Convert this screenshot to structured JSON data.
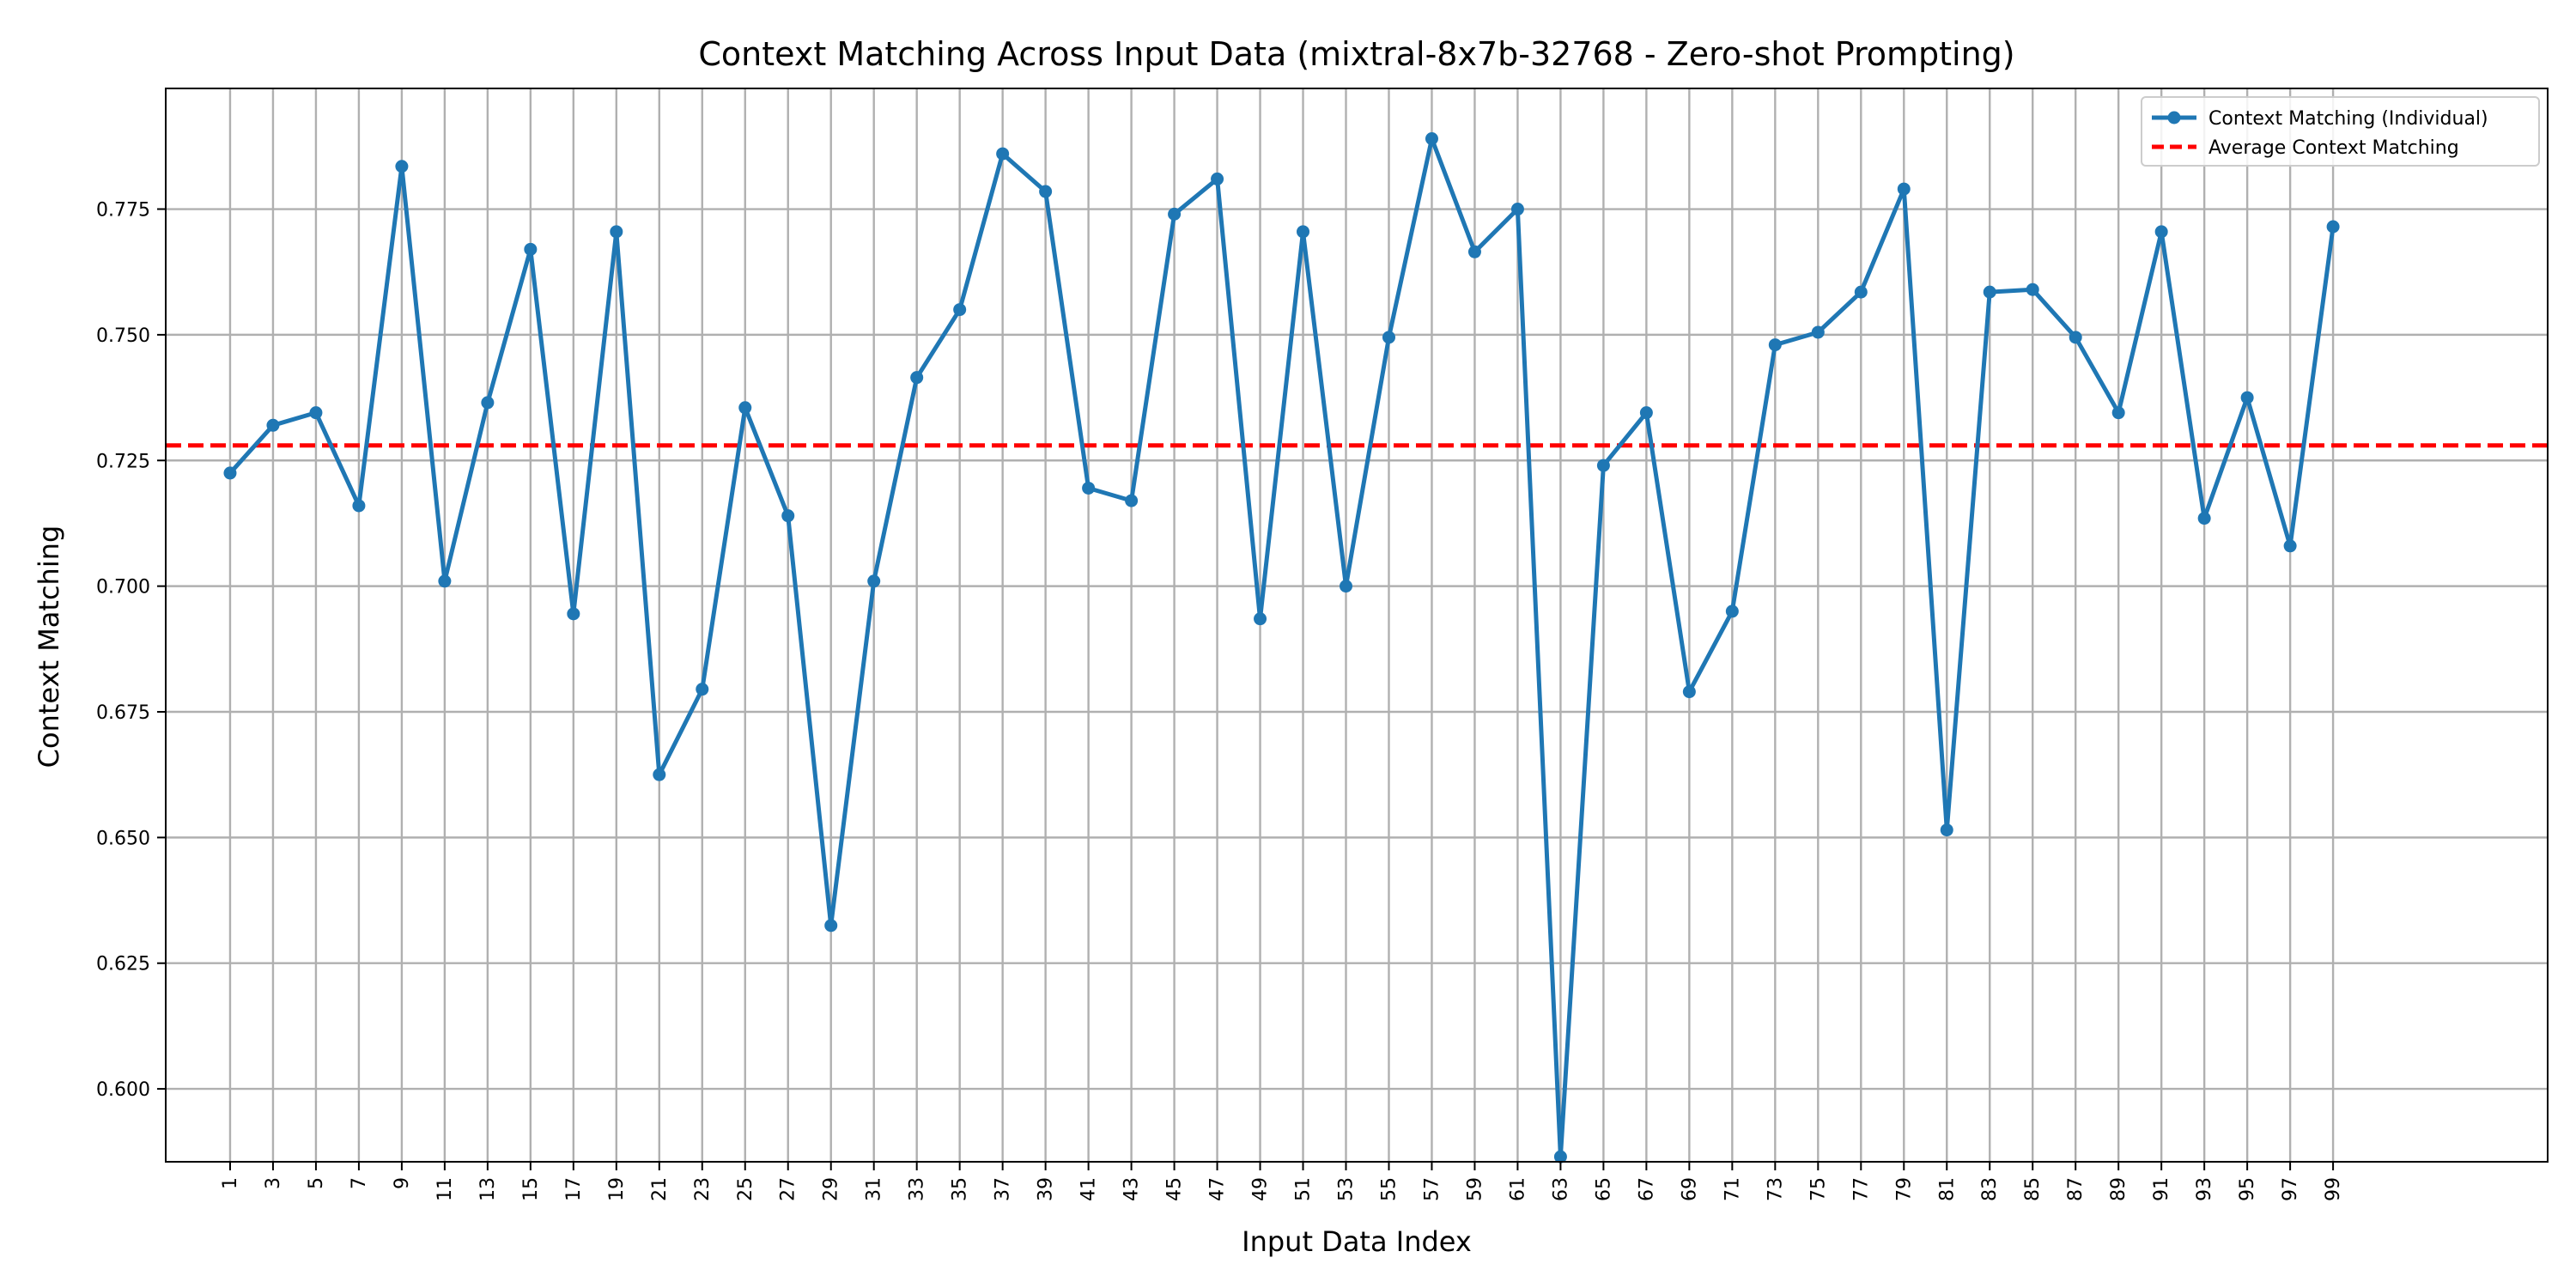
{
  "chart_data": {
    "type": "line",
    "title": "Context Matching Across Input Data (mixtral-8x7b-32768 - Zero-shot Prompting)",
    "xlabel": "Input Data Index",
    "ylabel": "Context Matching",
    "xlim": [
      -2,
      109
    ],
    "ylim": [
      0.5855,
      0.799
    ],
    "grid": true,
    "legend_position": "top-right",
    "x": [
      1,
      3,
      5,
      7,
      9,
      11,
      13,
      15,
      17,
      19,
      21,
      23,
      25,
      27,
      29,
      31,
      33,
      35,
      37,
      39,
      41,
      43,
      45,
      47,
      49,
      51,
      53,
      55,
      57,
      59,
      61,
      63,
      65,
      67,
      69,
      71,
      73,
      75,
      77,
      79,
      81,
      83,
      85,
      87,
      89,
      91,
      93,
      95,
      97,
      99
    ],
    "x_tick_labels": [
      "1",
      "3",
      "5",
      "7",
      "9",
      "11",
      "13",
      "15",
      "17",
      "19",
      "21",
      "23",
      "25",
      "27",
      "29",
      "31",
      "33",
      "35",
      "37",
      "39",
      "41",
      "43",
      "45",
      "47",
      "49",
      "51",
      "53",
      "55",
      "57",
      "59",
      "61",
      "63",
      "65",
      "67",
      "69",
      "71",
      "73",
      "75",
      "77",
      "79",
      "81",
      "83",
      "85",
      "87",
      "89",
      "91",
      "93",
      "95",
      "97",
      "99"
    ],
    "y_ticks": [
      0.6,
      0.625,
      0.65,
      0.675,
      0.7,
      0.725,
      0.75,
      0.775
    ],
    "y_tick_labels": [
      "0.600",
      "0.625",
      "0.650",
      "0.675",
      "0.700",
      "0.725",
      "0.750",
      "0.775"
    ],
    "series": [
      {
        "name": "Context Matching (Individual)",
        "color": "#1f77b4",
        "values": [
          0.7225,
          0.732,
          0.7345,
          0.716,
          0.7835,
          0.701,
          0.7365,
          0.767,
          0.6945,
          0.7705,
          0.6625,
          0.6795,
          0.7355,
          0.714,
          0.6325,
          0.701,
          0.7415,
          0.755,
          0.786,
          0.7785,
          0.7195,
          0.717,
          0.774,
          0.781,
          0.6935,
          0.7705,
          0.7,
          0.7495,
          0.789,
          0.7665,
          0.775,
          0.5865,
          0.724,
          0.7345,
          0.679,
          0.695,
          0.748,
          0.7505,
          0.7585,
          0.779,
          0.6515,
          0.7585,
          0.759,
          0.7495,
          0.7345,
          0.7705,
          0.7135,
          0.7375,
          0.708,
          0.7715
        ]
      },
      {
        "name": "Average Context Matching",
        "color": "#ff0000",
        "style": "dashed",
        "value": 0.728
      }
    ]
  }
}
